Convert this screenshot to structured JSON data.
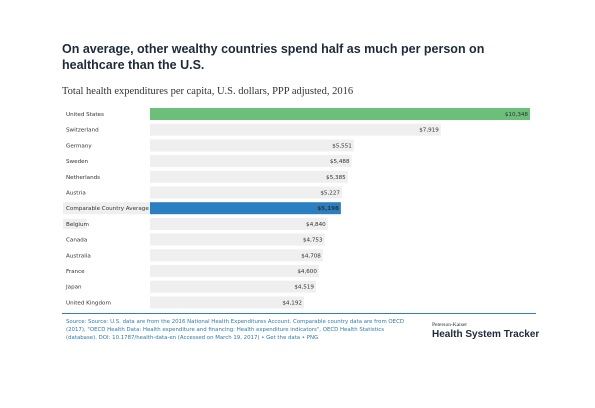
{
  "headline": "On average, other wealthy countries spend half as much per person on healthcare than the U.S.",
  "chart_data": {
    "type": "bar",
    "orientation": "horizontal",
    "title": "Total health expenditures per capita, U.S. dollars, PPP adjusted, 2016",
    "xlim": [
      0,
      10348
    ],
    "grid": false,
    "categories": [
      "United States",
      "Switzerland",
      "Germany",
      "Sweden",
      "Netherlands",
      "Austria",
      "Comparable Country Average",
      "Belgium",
      "Canada",
      "Australia",
      "France",
      "Japan",
      "United Kingdom"
    ],
    "values": [
      10348,
      7919,
      5551,
      5488,
      5385,
      5227,
      5198,
      4840,
      4753,
      4708,
      4600,
      4519,
      4192
    ],
    "value_labels": [
      "$10,348",
      "$7,919",
      "$5,551",
      "$5,488",
      "$5,385",
      "$5,227",
      "$5,198",
      "$4,840",
      "$4,753",
      "$4,708",
      "$4,600",
      "$4,519",
      "$4,192"
    ],
    "colors": {
      "United States": "#6cbf78",
      "Comparable Country Average": "#2a7fc1",
      "default": "#efefef",
      "track": "#f6f6f6"
    }
  },
  "source": "Source: Source: U.S. data are from the 2016 National Health Expenditures Account. Comparable country data are from OECD (2017), \"OECD Health Data: Health expenditure and financing: Health expenditure indicators\", OECD Health Statistics (database). DOI: 10.1787/health-data-en (Accessed on March 19, 2017) • Get the data • PNG",
  "brand": {
    "small": "Peterson-Kaiser",
    "big": "Health System Tracker"
  }
}
